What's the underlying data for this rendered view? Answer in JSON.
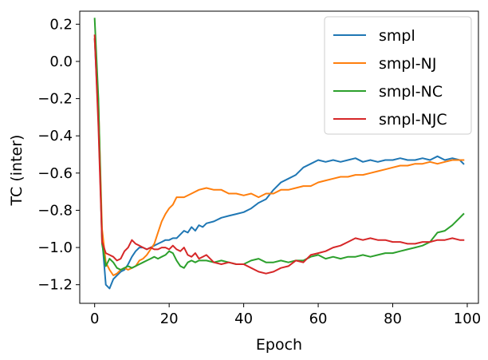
{
  "chart_data": {
    "type": "line",
    "xlabel": "Epoch",
    "ylabel": "TC (inter)",
    "xlim": [
      -4,
      103
    ],
    "ylim": [
      -1.3,
      0.27
    ],
    "xticks": [
      0,
      20,
      40,
      60,
      80,
      100
    ],
    "yticks": [
      0.2,
      0.0,
      -0.2,
      -0.4,
      -0.6,
      -0.8,
      -1.0,
      -1.2
    ],
    "xtick_labels": [
      "0",
      "20",
      "40",
      "60",
      "80",
      "100"
    ],
    "ytick_labels": [
      "0.2",
      "0.0",
      "−0.2",
      "−0.4",
      "−0.6",
      "−0.8",
      "−1.0",
      "−1.2"
    ],
    "grid": false,
    "legend_position": "top-right",
    "series": [
      {
        "name": "smpl",
        "color": "#1f77b4",
        "points": [
          [
            0,
            0.12
          ],
          [
            1,
            -0.3
          ],
          [
            2,
            -0.95
          ],
          [
            3,
            -1.2
          ],
          [
            4,
            -1.22
          ],
          [
            5,
            -1.17
          ],
          [
            6,
            -1.15
          ],
          [
            7,
            -1.13
          ],
          [
            8,
            -1.12
          ],
          [
            9,
            -1.09
          ],
          [
            10,
            -1.05
          ],
          [
            11,
            -1.02
          ],
          [
            12,
            -1.0
          ],
          [
            13,
            -1.0
          ],
          [
            14,
            -1.01
          ],
          [
            15,
            -1.0
          ],
          [
            16,
            -0.99
          ],
          [
            17,
            -0.98
          ],
          [
            18,
            -0.97
          ],
          [
            19,
            -0.96
          ],
          [
            20,
            -0.96
          ],
          [
            21,
            -0.95
          ],
          [
            22,
            -0.95
          ],
          [
            23,
            -0.93
          ],
          [
            24,
            -0.91
          ],
          [
            25,
            -0.92
          ],
          [
            26,
            -0.89
          ],
          [
            27,
            -0.91
          ],
          [
            28,
            -0.88
          ],
          [
            29,
            -0.89
          ],
          [
            30,
            -0.87
          ],
          [
            32,
            -0.86
          ],
          [
            34,
            -0.84
          ],
          [
            36,
            -0.83
          ],
          [
            38,
            -0.82
          ],
          [
            40,
            -0.81
          ],
          [
            42,
            -0.79
          ],
          [
            44,
            -0.76
          ],
          [
            46,
            -0.74
          ],
          [
            48,
            -0.69
          ],
          [
            50,
            -0.65
          ],
          [
            52,
            -0.63
          ],
          [
            54,
            -0.61
          ],
          [
            56,
            -0.57
          ],
          [
            58,
            -0.55
          ],
          [
            60,
            -0.53
          ],
          [
            62,
            -0.54
          ],
          [
            64,
            -0.53
          ],
          [
            66,
            -0.54
          ],
          [
            68,
            -0.53
          ],
          [
            70,
            -0.52
          ],
          [
            72,
            -0.54
          ],
          [
            74,
            -0.53
          ],
          [
            76,
            -0.54
          ],
          [
            78,
            -0.53
          ],
          [
            80,
            -0.53
          ],
          [
            82,
            -0.52
          ],
          [
            84,
            -0.53
          ],
          [
            86,
            -0.53
          ],
          [
            88,
            -0.52
          ],
          [
            90,
            -0.53
          ],
          [
            92,
            -0.51
          ],
          [
            94,
            -0.53
          ],
          [
            96,
            -0.52
          ],
          [
            98,
            -0.53
          ],
          [
            99,
            -0.55
          ]
        ]
      },
      {
        "name": "smpl-NJ",
        "color": "#ff7f0e",
        "points": [
          [
            0,
            0.12
          ],
          [
            1,
            -0.22
          ],
          [
            2,
            -0.9
          ],
          [
            3,
            -1.08
          ],
          [
            4,
            -1.12
          ],
          [
            5,
            -1.15
          ],
          [
            6,
            -1.14
          ],
          [
            7,
            -1.12
          ],
          [
            8,
            -1.11
          ],
          [
            9,
            -1.12
          ],
          [
            10,
            -1.11
          ],
          [
            11,
            -1.1
          ],
          [
            12,
            -1.07
          ],
          [
            13,
            -1.06
          ],
          [
            14,
            -1.04
          ],
          [
            15,
            -1.01
          ],
          [
            16,
            -0.98
          ],
          [
            17,
            -0.92
          ],
          [
            18,
            -0.86
          ],
          [
            19,
            -0.82
          ],
          [
            20,
            -0.79
          ],
          [
            21,
            -0.77
          ],
          [
            22,
            -0.73
          ],
          [
            24,
            -0.73
          ],
          [
            26,
            -0.71
          ],
          [
            28,
            -0.69
          ],
          [
            30,
            -0.68
          ],
          [
            32,
            -0.69
          ],
          [
            34,
            -0.69
          ],
          [
            36,
            -0.71
          ],
          [
            38,
            -0.71
          ],
          [
            40,
            -0.72
          ],
          [
            42,
            -0.71
          ],
          [
            44,
            -0.73
          ],
          [
            46,
            -0.71
          ],
          [
            48,
            -0.71
          ],
          [
            50,
            -0.69
          ],
          [
            52,
            -0.69
          ],
          [
            54,
            -0.68
          ],
          [
            56,
            -0.67
          ],
          [
            58,
            -0.67
          ],
          [
            60,
            -0.65
          ],
          [
            62,
            -0.64
          ],
          [
            64,
            -0.63
          ],
          [
            66,
            -0.62
          ],
          [
            68,
            -0.62
          ],
          [
            70,
            -0.61
          ],
          [
            72,
            -0.61
          ],
          [
            74,
            -0.6
          ],
          [
            76,
            -0.59
          ],
          [
            78,
            -0.58
          ],
          [
            80,
            -0.57
          ],
          [
            82,
            -0.56
          ],
          [
            84,
            -0.56
          ],
          [
            86,
            -0.55
          ],
          [
            88,
            -0.55
          ],
          [
            90,
            -0.54
          ],
          [
            92,
            -0.55
          ],
          [
            94,
            -0.54
          ],
          [
            96,
            -0.53
          ],
          [
            98,
            -0.53
          ],
          [
            99,
            -0.53
          ]
        ]
      },
      {
        "name": "smpl-NC",
        "color": "#2ca02c",
        "points": [
          [
            0,
            0.23
          ],
          [
            1,
            -0.2
          ],
          [
            2,
            -0.98
          ],
          [
            3,
            -1.1
          ],
          [
            4,
            -1.06
          ],
          [
            5,
            -1.08
          ],
          [
            6,
            -1.11
          ],
          [
            7,
            -1.12
          ],
          [
            8,
            -1.11
          ],
          [
            9,
            -1.1
          ],
          [
            10,
            -1.11
          ],
          [
            11,
            -1.1
          ],
          [
            12,
            -1.09
          ],
          [
            13,
            -1.08
          ],
          [
            14,
            -1.07
          ],
          [
            15,
            -1.06
          ],
          [
            16,
            -1.05
          ],
          [
            17,
            -1.06
          ],
          [
            18,
            -1.05
          ],
          [
            19,
            -1.04
          ],
          [
            20,
            -1.02
          ],
          [
            21,
            -1.03
          ],
          [
            22,
            -1.07
          ],
          [
            23,
            -1.1
          ],
          [
            24,
            -1.11
          ],
          [
            25,
            -1.08
          ],
          [
            26,
            -1.07
          ],
          [
            27,
            -1.08
          ],
          [
            28,
            -1.07
          ],
          [
            30,
            -1.07
          ],
          [
            32,
            -1.08
          ],
          [
            34,
            -1.07
          ],
          [
            36,
            -1.08
          ],
          [
            38,
            -1.09
          ],
          [
            40,
            -1.09
          ],
          [
            42,
            -1.07
          ],
          [
            44,
            -1.06
          ],
          [
            46,
            -1.08
          ],
          [
            48,
            -1.08
          ],
          [
            50,
            -1.07
          ],
          [
            52,
            -1.08
          ],
          [
            54,
            -1.07
          ],
          [
            56,
            -1.07
          ],
          [
            58,
            -1.05
          ],
          [
            60,
            -1.04
          ],
          [
            62,
            -1.06
          ],
          [
            64,
            -1.05
          ],
          [
            66,
            -1.06
          ],
          [
            68,
            -1.05
          ],
          [
            70,
            -1.05
          ],
          [
            72,
            -1.04
          ],
          [
            74,
            -1.05
          ],
          [
            76,
            -1.04
          ],
          [
            78,
            -1.03
          ],
          [
            80,
            -1.03
          ],
          [
            82,
            -1.02
          ],
          [
            84,
            -1.01
          ],
          [
            86,
            -1.0
          ],
          [
            88,
            -0.99
          ],
          [
            90,
            -0.97
          ],
          [
            92,
            -0.92
          ],
          [
            94,
            -0.91
          ],
          [
            96,
            -0.88
          ],
          [
            98,
            -0.84
          ],
          [
            99,
            -0.82
          ]
        ]
      },
      {
        "name": "smpl-NJC",
        "color": "#d62728",
        "points": [
          [
            0,
            0.14
          ],
          [
            1,
            -0.35
          ],
          [
            2,
            -0.97
          ],
          [
            3,
            -1.03
          ],
          [
            4,
            -1.04
          ],
          [
            5,
            -1.05
          ],
          [
            6,
            -1.07
          ],
          [
            7,
            -1.06
          ],
          [
            8,
            -1.02
          ],
          [
            9,
            -1.0
          ],
          [
            10,
            -0.96
          ],
          [
            11,
            -0.98
          ],
          [
            12,
            -0.99
          ],
          [
            13,
            -1.0
          ],
          [
            14,
            -1.01
          ],
          [
            15,
            -1.0
          ],
          [
            16,
            -1.01
          ],
          [
            17,
            -1.01
          ],
          [
            18,
            -1.0
          ],
          [
            19,
            -1.0
          ],
          [
            20,
            -1.01
          ],
          [
            21,
            -0.99
          ],
          [
            22,
            -1.01
          ],
          [
            23,
            -1.02
          ],
          [
            24,
            -1.0
          ],
          [
            25,
            -1.04
          ],
          [
            26,
            -1.05
          ],
          [
            27,
            -1.03
          ],
          [
            28,
            -1.06
          ],
          [
            30,
            -1.04
          ],
          [
            32,
            -1.08
          ],
          [
            34,
            -1.09
          ],
          [
            36,
            -1.08
          ],
          [
            38,
            -1.09
          ],
          [
            40,
            -1.09
          ],
          [
            42,
            -1.11
          ],
          [
            44,
            -1.13
          ],
          [
            46,
            -1.14
          ],
          [
            48,
            -1.13
          ],
          [
            50,
            -1.11
          ],
          [
            52,
            -1.1
          ],
          [
            54,
            -1.07
          ],
          [
            56,
            -1.08
          ],
          [
            58,
            -1.04
          ],
          [
            60,
            -1.03
          ],
          [
            62,
            -1.02
          ],
          [
            64,
            -1.0
          ],
          [
            66,
            -0.99
          ],
          [
            68,
            -0.97
          ],
          [
            70,
            -0.95
          ],
          [
            72,
            -0.96
          ],
          [
            74,
            -0.95
          ],
          [
            76,
            -0.96
          ],
          [
            78,
            -0.96
          ],
          [
            80,
            -0.97
          ],
          [
            82,
            -0.97
          ],
          [
            84,
            -0.98
          ],
          [
            86,
            -0.98
          ],
          [
            88,
            -0.97
          ],
          [
            90,
            -0.97
          ],
          [
            92,
            -0.96
          ],
          [
            94,
            -0.96
          ],
          [
            96,
            -0.95
          ],
          [
            98,
            -0.96
          ],
          [
            99,
            -0.96
          ]
        ]
      }
    ]
  }
}
